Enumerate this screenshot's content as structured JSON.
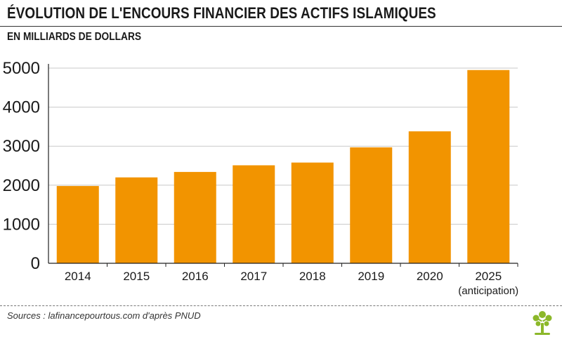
{
  "header": {
    "title": "ÉVOLUTION DE L'ENCOURS FINANCIER DES ACTIFS ISLAMIQUES",
    "subtitle": "EN MILLIARDS DE DOLLARS"
  },
  "footer": {
    "source": "Sources : lafinancepourtous.com d'après PNUD"
  },
  "colors": {
    "bar": "#f29400",
    "grid": "#c9c9c9",
    "text": "#1a1a1a",
    "logo": "#8cb82a"
  },
  "icons": {
    "logo": "tree-icon"
  },
  "chart_data": {
    "type": "bar",
    "title": "ÉVOLUTION DE L'ENCOURS FINANCIER DES ACTIFS ISLAMIQUES",
    "subtitle": "EN MILLIARDS DE DOLLARS",
    "categories": [
      "2014",
      "2015",
      "2016",
      "2017",
      "2018",
      "2019",
      "2020",
      "2025"
    ],
    "category_notes": [
      "",
      "",
      "",
      "",
      "",
      "",
      "",
      "(anticipation)"
    ],
    "values": [
      1980,
      2200,
      2340,
      2510,
      2580,
      2970,
      3380,
      4950
    ],
    "ylim": [
      0,
      5000
    ],
    "yticks": [
      0,
      1000,
      2000,
      3000,
      4000,
      5000
    ],
    "xlabel": "",
    "ylabel": "",
    "grid": true,
    "legend": "none"
  }
}
